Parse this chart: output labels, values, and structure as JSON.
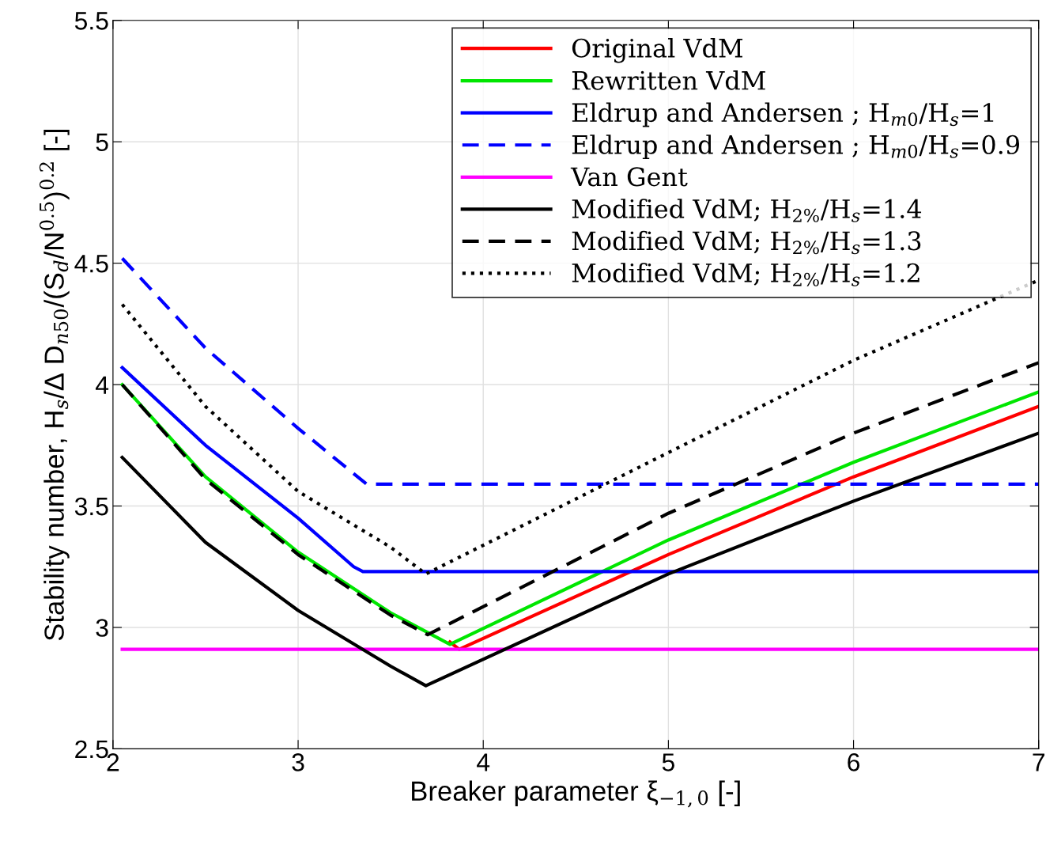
{
  "chart_data": {
    "type": "line",
    "xlabel": "Breaker parameter ξ$_{−1,0}$ [-]",
    "ylabel": "Stability number, H$_{s}$/Δ D$_{n50}$/(S$_{d}$/N$^{0.5}$)$^{0.2}$ [-]",
    "xlim": [
      2,
      7
    ],
    "ylim": [
      2.5,
      5.5
    ],
    "xticks": [
      2,
      3,
      4,
      5,
      6,
      7
    ],
    "yticks": [
      2.5,
      3,
      3.5,
      4,
      4.5,
      5,
      5.5
    ],
    "grid": true,
    "legend": "top right",
    "series": [
      {
        "name": "Original VdM",
        "color": "#ff0000",
        "line_style": "solid",
        "x": [
          3.82,
          3.87,
          5.0,
          6.0,
          7.0
        ],
        "values": [
          2.94,
          2.91,
          3.3,
          3.62,
          3.91
        ]
      },
      {
        "name": "Rewritten VdM",
        "color": "#00e600",
        "line_style": "solid",
        "x": [
          2.05,
          2.5,
          3.0,
          3.5,
          3.82,
          5.0,
          6.0,
          7.0
        ],
        "values": [
          4.0,
          3.62,
          3.31,
          3.06,
          2.93,
          3.36,
          3.68,
          3.97
        ]
      },
      {
        "name": "Eldrup and Andersen ; H$_{m0}$/H$_{s}$=1",
        "color": "#0000ff",
        "line_style": "solid",
        "x": [
          2.05,
          2.5,
          3.0,
          3.3,
          3.35,
          7.0
        ],
        "values": [
          4.07,
          3.75,
          3.45,
          3.25,
          3.23,
          3.23
        ]
      },
      {
        "name": "Eldrup and Andersen ; H$_{m0}$/H$_{s}$=0.9",
        "color": "#0000ff",
        "line_style": "dashed",
        "x": [
          2.05,
          2.5,
          3.0,
          3.37,
          7.0
        ],
        "values": [
          4.52,
          4.15,
          3.82,
          3.59,
          3.59
        ]
      },
      {
        "name": "Van Gent",
        "color": "#ff00ff",
        "line_style": "solid",
        "x": [
          2.05,
          7.0
        ],
        "values": [
          2.91,
          2.91
        ]
      },
      {
        "name": "Modified VdM; H$_{2%}$/H$_{s}$=1.4",
        "color": "#000000",
        "line_style": "solid",
        "x": [
          2.05,
          2.5,
          3.0,
          3.5,
          3.69,
          5.0,
          6.0,
          7.0
        ],
        "values": [
          3.7,
          3.35,
          3.07,
          2.84,
          2.76,
          3.22,
          3.52,
          3.8
        ]
      },
      {
        "name": "Modified VdM; H$_{2%}$/H$_{s}$=1.3",
        "color": "#000000",
        "line_style": "dashed",
        "x": [
          2.05,
          2.5,
          3.0,
          3.5,
          3.7,
          5.0,
          6.0,
          7.0
        ],
        "values": [
          4.0,
          3.61,
          3.3,
          3.05,
          2.97,
          3.47,
          3.8,
          4.09
        ]
      },
      {
        "name": "Modified VdM; H$_{2%}$/H$_{s}$=1.2",
        "color": "#000000",
        "line_style": "dotted",
        "x": [
          2.05,
          2.5,
          3.0,
          3.5,
          3.69,
          5.0,
          6.0,
          7.0
        ],
        "values": [
          4.33,
          3.91,
          3.56,
          3.33,
          3.22,
          3.72,
          4.1,
          4.43
        ]
      }
    ]
  }
}
